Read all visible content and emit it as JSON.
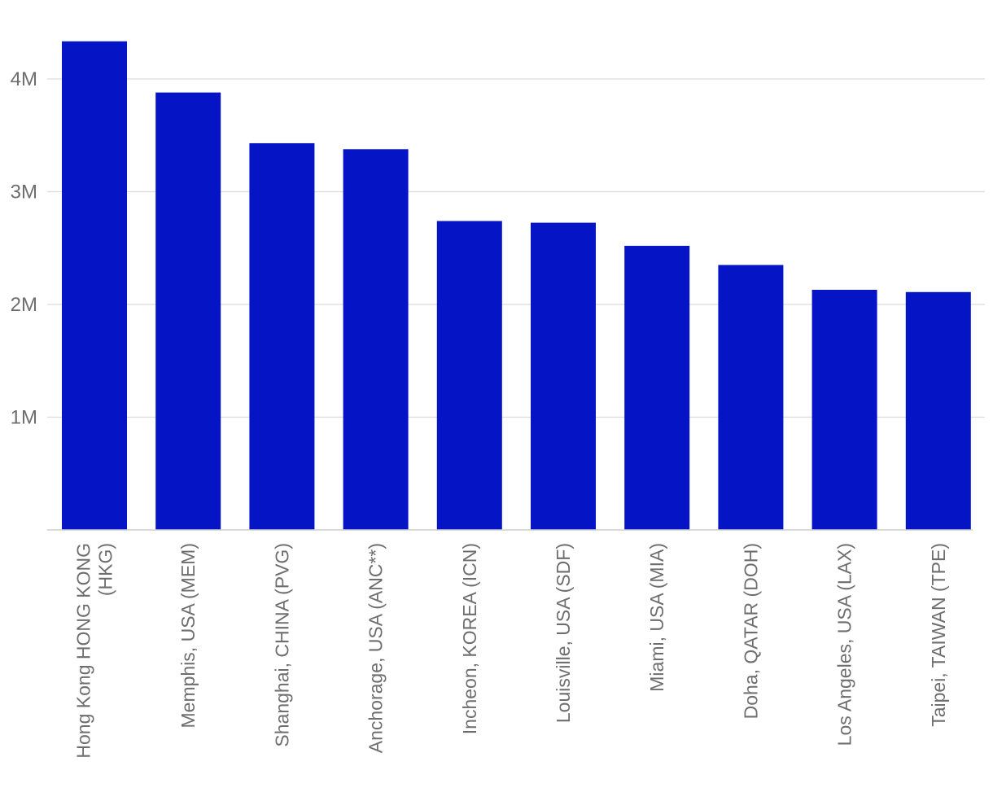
{
  "chart_data": {
    "type": "bar",
    "title": "",
    "xlabel": "",
    "ylabel": "",
    "categories": [
      "Hong Kong HONG KONG (HKG)",
      "Memphis, USA (MEM)",
      "Shanghai, CHINA (PVG)",
      "Anchorage, USA (ANC**)",
      "Incheon, KOREA (ICN)",
      "Louisville, USA (SDF)",
      "Miami, USA (MIA)",
      "Doha, QATAR (DOH)",
      "Los Angeles, USA (LAX)",
      "Taipei, TAIWAN (TPE)"
    ],
    "category_label_lines": [
      [
        "Hong Kong HONG KONG",
        "(HKG)"
      ],
      [
        "Memphis, USA (MEM)"
      ],
      [
        "Shanghai, CHINA (PVG)"
      ],
      [
        "Anchorage, USA (ANC**)"
      ],
      [
        "Incheon, KOREA (ICN)"
      ],
      [
        "Louisville, USA (SDF)"
      ],
      [
        "Miami, USA (MIA)"
      ],
      [
        "Doha, QATAR (DOH)"
      ],
      [
        "Los Angeles, USA (LAX)"
      ],
      [
        "Taipei, TAIWAN (TPE)"
      ]
    ],
    "values": [
      4334000,
      3880000,
      3430000,
      3377000,
      2740000,
      2725000,
      2520000,
      2350000,
      2130000,
      2110000
    ],
    "ylim": [
      0,
      4400000
    ],
    "yticks": [
      1000000,
      2000000,
      3000000,
      4000000
    ],
    "ytick_labels": [
      "1M",
      "2M",
      "3M",
      "4M"
    ],
    "grid": true,
    "legend": "none",
    "bar_color": "#0515c5"
  }
}
